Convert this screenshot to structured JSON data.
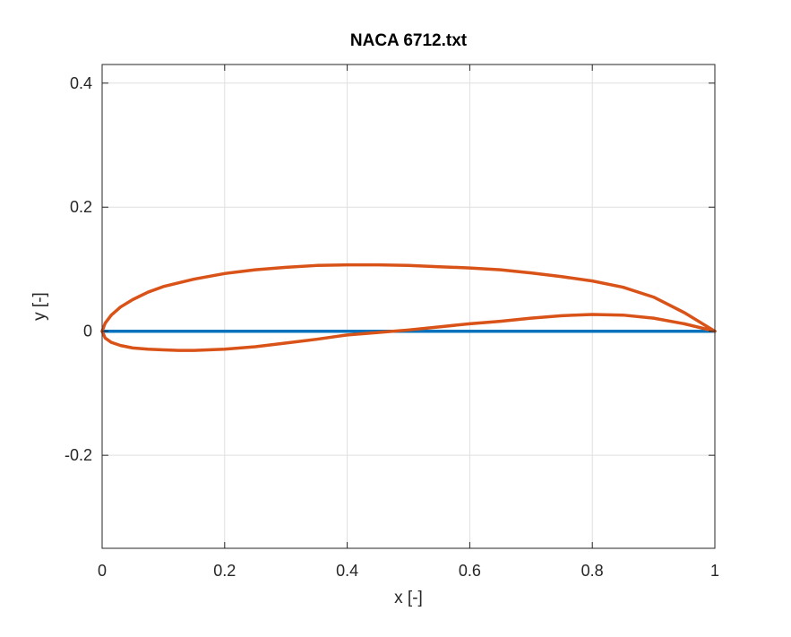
{
  "chart_data": {
    "type": "line",
    "title": "NACA 6712.txt",
    "xlabel": "x [-]",
    "ylabel": "y [-]",
    "xlim": [
      0,
      1
    ],
    "ylim": [
      -0.35,
      0.43
    ],
    "xticks": [
      0,
      0.2,
      0.4,
      0.6,
      0.8,
      1
    ],
    "xtick_labels": [
      "0",
      "0.2",
      "0.4",
      "0.6",
      "0.8",
      "1"
    ],
    "yticks": [
      -0.2,
      0,
      0.2,
      0.4
    ],
    "ytick_labels": [
      "-0.2",
      "0",
      "0.2",
      "0.4"
    ],
    "grid": true,
    "series": [
      {
        "color": "#0072BD",
        "x": [
          0,
          1
        ],
        "y": [
          0,
          0
        ]
      },
      {
        "color": "#D95319",
        "x": [
          1.0,
          0.95,
          0.9,
          0.85,
          0.8,
          0.75,
          0.7,
          0.65,
          0.6,
          0.55,
          0.5,
          0.45,
          0.4,
          0.35,
          0.3,
          0.25,
          0.2,
          0.15,
          0.1,
          0.075,
          0.05,
          0.03,
          0.015,
          0.005,
          0.0,
          0.005,
          0.015,
          0.03,
          0.05,
          0.075,
          0.1,
          0.125,
          0.15,
          0.2,
          0.25,
          0.3,
          0.35,
          0.4,
          0.45,
          0.5,
          0.55,
          0.6,
          0.65,
          0.7,
          0.75,
          0.8,
          0.85,
          0.9,
          0.95,
          1.0
        ],
        "y": [
          0.0,
          0.03,
          0.055,
          0.071,
          0.081,
          0.088,
          0.094,
          0.099,
          0.102,
          0.104,
          0.106,
          0.107,
          0.107,
          0.106,
          0.103,
          0.099,
          0.093,
          0.084,
          0.072,
          0.063,
          0.051,
          0.039,
          0.026,
          0.013,
          0.0,
          -0.011,
          -0.018,
          -0.023,
          -0.027,
          -0.029,
          -0.03,
          -0.031,
          -0.031,
          -0.029,
          -0.025,
          -0.019,
          -0.013,
          -0.006,
          -0.002,
          0.002,
          0.007,
          0.012,
          0.016,
          0.021,
          0.025,
          0.027,
          0.026,
          0.021,
          0.012,
          0.0
        ]
      }
    ]
  }
}
